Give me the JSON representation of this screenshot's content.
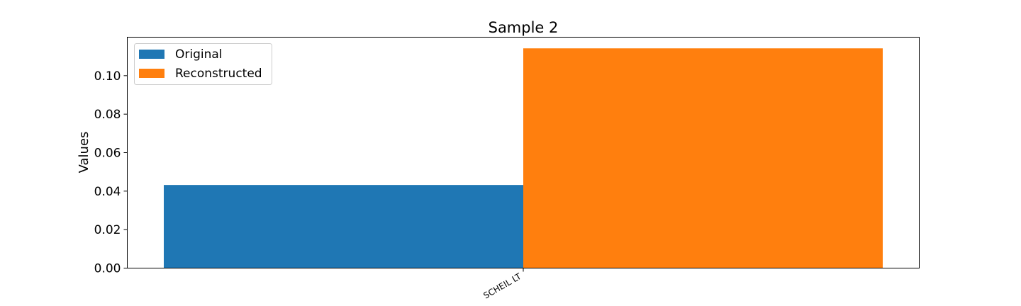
{
  "chart_data": {
    "type": "bar",
    "title": "Sample 2",
    "xlabel": "",
    "ylabel": "Values",
    "categories": [
      "SCHEIL LT"
    ],
    "series": [
      {
        "name": "Original",
        "values": [
          0.0432
        ],
        "color": "#1f77b4"
      },
      {
        "name": "Reconstructed",
        "values": [
          0.1142
        ],
        "color": "#ff7f0e"
      }
    ],
    "ylim": [
      0,
      0.12
    ],
    "yticks": [
      0.0,
      0.02,
      0.04,
      0.06,
      0.08,
      0.1
    ],
    "ytick_labels": [
      "0.00",
      "0.02",
      "0.04",
      "0.06",
      "0.08",
      "0.10"
    ],
    "grid": false,
    "legend_position": "top-left"
  }
}
